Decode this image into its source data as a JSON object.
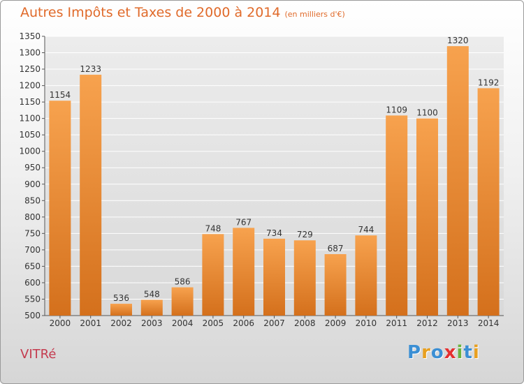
{
  "header": {
    "title": "Autres Impôts et Taxes de 2000 à 2014",
    "subtitle": "(en milliers d'€)"
  },
  "footer": {
    "city": "VITRé",
    "brand": "Proxiti"
  },
  "colors": {
    "title": "#e06a2a",
    "city": "#c43a4e",
    "bar_top": "#f7a24e",
    "bar_bottom": "#d4701c",
    "brand_letters": [
      "#3b8fd4",
      "#e8a020",
      "#3b8fd4",
      "#e53030",
      "#6cb33f",
      "#3b8fd4",
      "#e8a020"
    ]
  },
  "chart_data": {
    "type": "bar",
    "categories": [
      "2000",
      "2001",
      "2002",
      "2003",
      "2004",
      "2005",
      "2006",
      "2007",
      "2008",
      "2009",
      "2010",
      "2011",
      "2012",
      "2013",
      "2014"
    ],
    "values": [
      1154,
      1233,
      536,
      548,
      586,
      748,
      767,
      734,
      729,
      687,
      744,
      1109,
      1100,
      1320,
      1192
    ],
    "title": "Autres Impôts et Taxes de 2000 à 2014",
    "subtitle": "(en milliers d'€)",
    "xlabel": "",
    "ylabel": "",
    "ylim": [
      500,
      1350
    ],
    "yticks": [
      500,
      550,
      600,
      650,
      700,
      750,
      800,
      850,
      900,
      950,
      1000,
      1050,
      1100,
      1150,
      1200,
      1250,
      1300,
      1350
    ],
    "grid": true,
    "legend": "none",
    "data_labels": true
  }
}
